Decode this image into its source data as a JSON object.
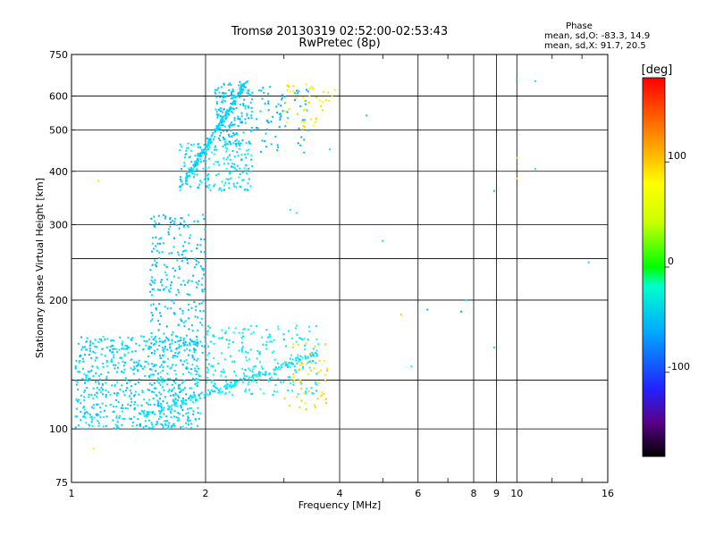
{
  "chart_data": {
    "type": "scatter",
    "title": "Tromsø 20130319 02:52:00-02:53:43",
    "subtitle": "RwPretec (8p)",
    "xlabel": "Frequency [MHz]",
    "ylabel": "Stationary phase Virtual Height [km]",
    "x_scale": "log2",
    "y_scale": "log",
    "xlim": [
      1,
      16
    ],
    "ylim": [
      75,
      750
    ],
    "x_ticks": [
      1,
      2,
      4,
      6,
      8,
      9,
      10,
      16
    ],
    "x_tick_labels": [
      "1",
      "2",
      "4",
      "6",
      "8",
      "9",
      "10",
      "16"
    ],
    "y_ticks": [
      75,
      100,
      200,
      300,
      400,
      500,
      600,
      750
    ],
    "y_tick_labels": [
      "75",
      "100",
      "200",
      "300",
      "400",
      "500",
      "600",
      "750"
    ],
    "y_grid": [
      100,
      130,
      200,
      250,
      300,
      400,
      500,
      600
    ],
    "grid": true,
    "phase_box": {
      "title": "Phase",
      "line1": "mean, sd,O: -83.3, 14.9",
      "line2": "mean, sd,X:  91.7, 20.5"
    },
    "colorbar": {
      "unit": "[deg]",
      "ticks": [
        100,
        0,
        -100
      ],
      "tick_labels": [
        "100",
        "0",
        "-100"
      ],
      "range": [
        -180,
        180
      ]
    },
    "series": [
      {
        "clusters": [
          {
            "x": [
              1.02,
              1.95
            ],
            "y": [
              100,
              165
            ],
            "phase": -105,
            "density": 700
          },
          {
            "x": [
              1.5,
              2.0
            ],
            "y": [
              150,
              320
            ],
            "phase": -110,
            "density": 260
          },
          {
            "x": [
              1.75,
              2.55
            ],
            "y": [
              360,
              470
            ],
            "phase": -100,
            "density": 190
          },
          {
            "x": [
              2.1,
              2.55
            ],
            "y": [
              460,
              650
            ],
            "phase": -110,
            "density": 180
          },
          {
            "x": [
              2.0,
              3.6
            ],
            "y": [
              120,
              175
            ],
            "phase": -95,
            "density": 240
          },
          {
            "x": [
              2.6,
              3.4
            ],
            "y": [
              440,
              650
            ],
            "phase": -115,
            "density": 70
          }
        ],
        "traces": [
          {
            "x0": 1.45,
            "y0": 107,
            "x1": 3.55,
            "y1": 150,
            "phase": -100,
            "n": 160
          },
          {
            "x0": 1.75,
            "y0": 365,
            "x1": 2.45,
            "y1": 640,
            "phase": -105,
            "n": 180
          }
        ],
        "points": [
          [
            3.1,
            325,
            -95
          ],
          [
            3.2,
            320,
            -90
          ],
          [
            4.6,
            540,
            -110
          ],
          [
            5.0,
            275,
            -100
          ],
          [
            6.3,
            190,
            -115
          ],
          [
            7.5,
            188,
            -120
          ],
          [
            7.7,
            200,
            -90
          ],
          [
            8.9,
            360,
            -110
          ],
          [
            8.9,
            155,
            -100
          ],
          [
            10.0,
            655,
            -110
          ],
          [
            11.0,
            650,
            -100
          ],
          [
            11.0,
            405,
            -100
          ],
          [
            14.5,
            245,
            -100
          ],
          [
            5.8,
            140,
            -90
          ],
          [
            3.8,
            450,
            -100
          ]
        ]
      },
      {
        "clusters": [
          {
            "x": [
              3.0,
              3.8
            ],
            "y": [
              500,
              640
            ],
            "phase": 100,
            "density": 45
          },
          {
            "x": [
              3.0,
              3.8
            ],
            "y": [
              110,
              160
            ],
            "phase": 105,
            "density": 55
          }
        ],
        "traces": [],
        "points": [
          [
            1.15,
            380,
            100
          ],
          [
            1.12,
            90,
            95
          ],
          [
            5.5,
            185,
            110
          ],
          [
            10.0,
            385,
            100
          ],
          [
            10.0,
            430,
            110
          ],
          [
            3.9,
            620,
            95
          ],
          [
            3.85,
            600,
            105
          ]
        ]
      }
    ]
  }
}
